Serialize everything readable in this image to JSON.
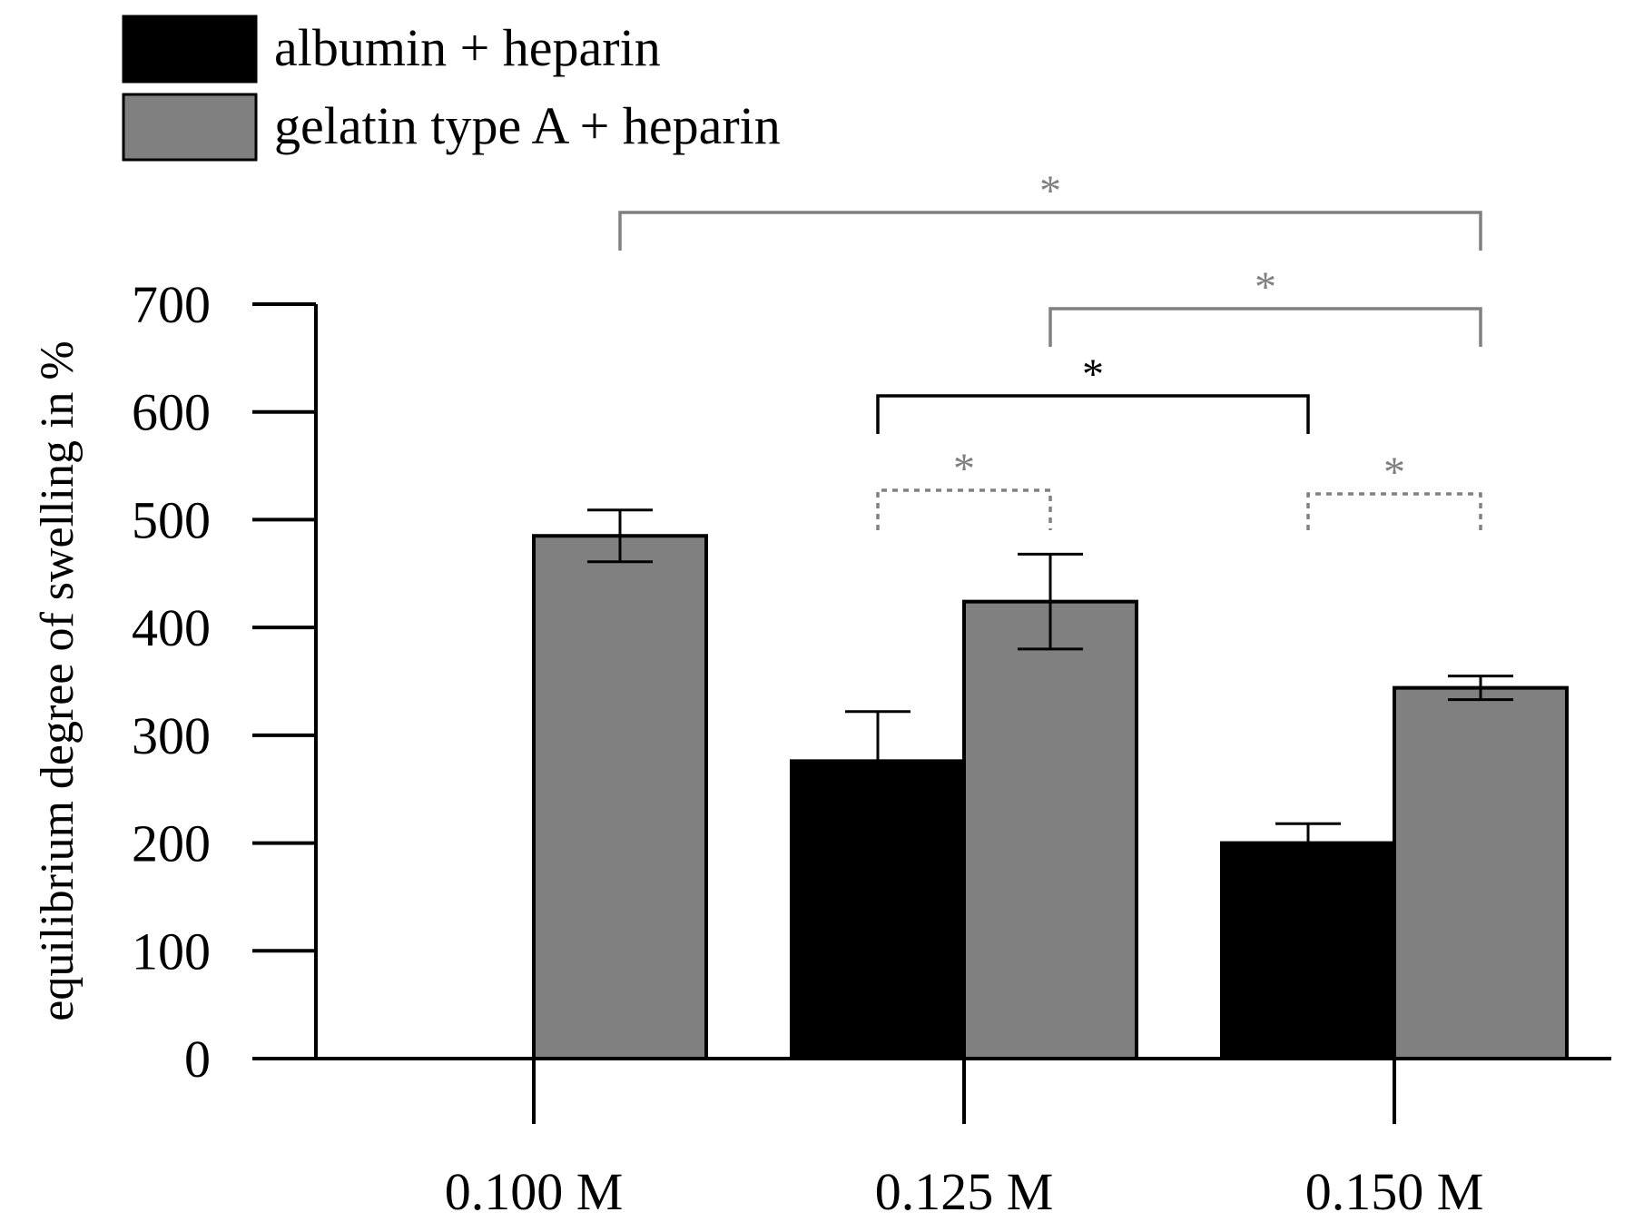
{
  "chart_data": {
    "type": "bar",
    "title": "",
    "xlabel": "",
    "ylabel": "equilibrium degree of swelling in %",
    "ylim": [
      0,
      700
    ],
    "yticks": [
      0,
      100,
      200,
      300,
      400,
      500,
      600,
      700
    ],
    "ytick_labels": [
      "0",
      "100",
      "200",
      "300",
      "400",
      "500",
      "600",
      "700"
    ],
    "minor_ytick_step": 50,
    "categories": [
      "0.100 M",
      "0.125 M",
      "0.150 M"
    ],
    "grid": false,
    "legend_position": "top-left",
    "series": [
      {
        "name": "albumin + heparin",
        "color": "#000000",
        "values": [
          null,
          276,
          200
        ],
        "errors": [
          null,
          46,
          18
        ]
      },
      {
        "name": "gelatin type A + heparin",
        "color": "#808080",
        "values": [
          485,
          424,
          344
        ],
        "errors": [
          24,
          44,
          11
        ]
      }
    ],
    "significance": [
      {
        "label": "*",
        "color": "#808080",
        "style": "solid",
        "from": {
          "category": 0,
          "series": 1
        },
        "to": {
          "category": 2,
          "series": 1
        }
      },
      {
        "label": "*",
        "color": "#808080",
        "style": "solid",
        "from": {
          "category": 1,
          "series": 1
        },
        "to": {
          "category": 2,
          "series": 1
        }
      },
      {
        "label": "*",
        "color": "#000000",
        "style": "solid",
        "from": {
          "category": 1,
          "series": 0
        },
        "to": {
          "category": 2,
          "series": 0
        }
      },
      {
        "label": "*",
        "color": "#808080",
        "style": "dotted",
        "from": {
          "category": 1,
          "series": 0
        },
        "to": {
          "category": 1,
          "series": 1
        }
      },
      {
        "label": "*",
        "color": "#808080",
        "style": "dotted",
        "from": {
          "category": 2,
          "series": 0
        },
        "to": {
          "category": 2,
          "series": 1
        }
      }
    ]
  }
}
